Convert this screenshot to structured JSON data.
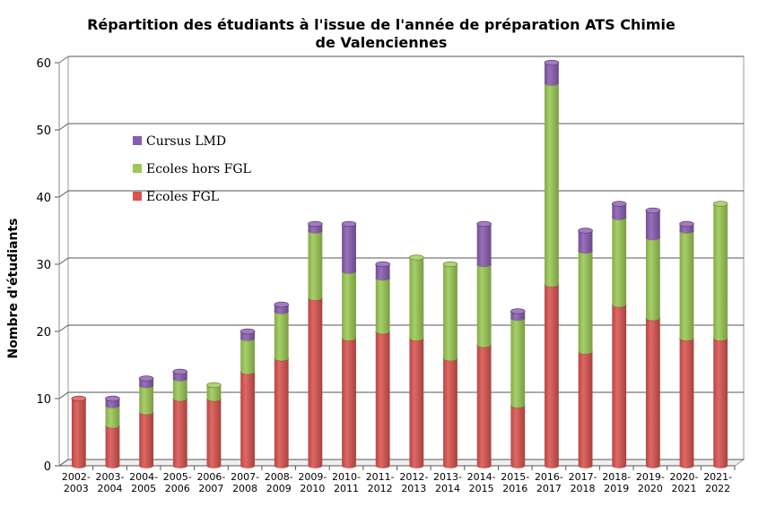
{
  "chart_data": {
    "type": "bar",
    "stacked": true,
    "title_lines": [
      "Répartition des étudiants à l'issue de l'année de préparation ATS Chimie",
      "de Valenciennes"
    ],
    "ylabel": "Nombre d'étudiants",
    "xlabel": "",
    "ylim": [
      0,
      60
    ],
    "yticks": [
      "0",
      "10",
      "20",
      "30",
      "40",
      "50",
      "60"
    ],
    "grid": true,
    "legend_placement": "top-left",
    "categories": [
      [
        "2002-",
        "2003"
      ],
      [
        "2003-",
        "2004"
      ],
      [
        "2004-",
        "2005"
      ],
      [
        "2005-",
        "2006"
      ],
      [
        "2006-",
        "2007"
      ],
      [
        "2007-",
        "2008"
      ],
      [
        "2008-",
        "2009"
      ],
      [
        "2009-",
        "2010"
      ],
      [
        "2010-",
        "2011"
      ],
      [
        "2011-",
        "2012"
      ],
      [
        "2012-",
        "2013"
      ],
      [
        "2013-",
        "2014"
      ],
      [
        "2014-",
        "2015"
      ],
      [
        "2015-",
        "2016"
      ],
      [
        "2016-",
        "2017"
      ],
      [
        "2017-",
        "2018"
      ],
      [
        "2018-",
        "2019"
      ],
      [
        "2019-",
        "2020"
      ],
      [
        "2020-",
        "2021"
      ],
      [
        "2021-",
        "2022"
      ]
    ],
    "series": [
      {
        "name": "Ecoles FGL",
        "color": "#d9534f",
        "values": [
          10,
          6,
          8,
          10,
          10,
          14,
          16,
          25,
          19,
          20,
          19,
          16,
          18,
          9,
          27,
          17,
          24,
          22,
          19,
          19
        ]
      },
      {
        "name": "Ecoles hors FGL",
        "color": "#9bc955",
        "values": [
          0,
          3,
          4,
          3,
          2,
          5,
          7,
          10,
          10,
          8,
          12,
          14,
          12,
          13,
          30,
          15,
          13,
          12,
          16,
          20
        ]
      },
      {
        "name": "Cursus LMD",
        "color": "#8a5cb0",
        "values": [
          0,
          1,
          1,
          1,
          0,
          1,
          1,
          1,
          7,
          2,
          0,
          0,
          6,
          1,
          3,
          3,
          2,
          4,
          1,
          0
        ]
      }
    ],
    "legend_order": [
      "Cursus LMD",
      "Ecoles hors FGL",
      "Ecoles FGL"
    ]
  }
}
